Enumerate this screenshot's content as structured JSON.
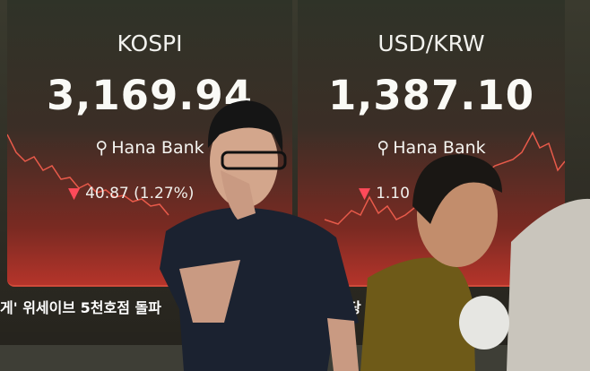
{
  "board": {
    "kospi": {
      "title": "KOSPI",
      "value": "3,169.94",
      "brand": "Hana Bank",
      "change": "40.87 (1.27%)",
      "direction": "down"
    },
    "usdkrw": {
      "title": "USD/KRW",
      "value": "1,387.10",
      "brand": "Hana Bank",
      "change": "1.10",
      "direction": "down"
    }
  },
  "ticker": {
    "left": "게' 위세이브 5천호점 돌파",
    "right": "당 돌"
  },
  "colors": {
    "down": "#ff4a5a",
    "chart_line": "#e85a4a",
    "panel_red": "#b5342a"
  }
}
